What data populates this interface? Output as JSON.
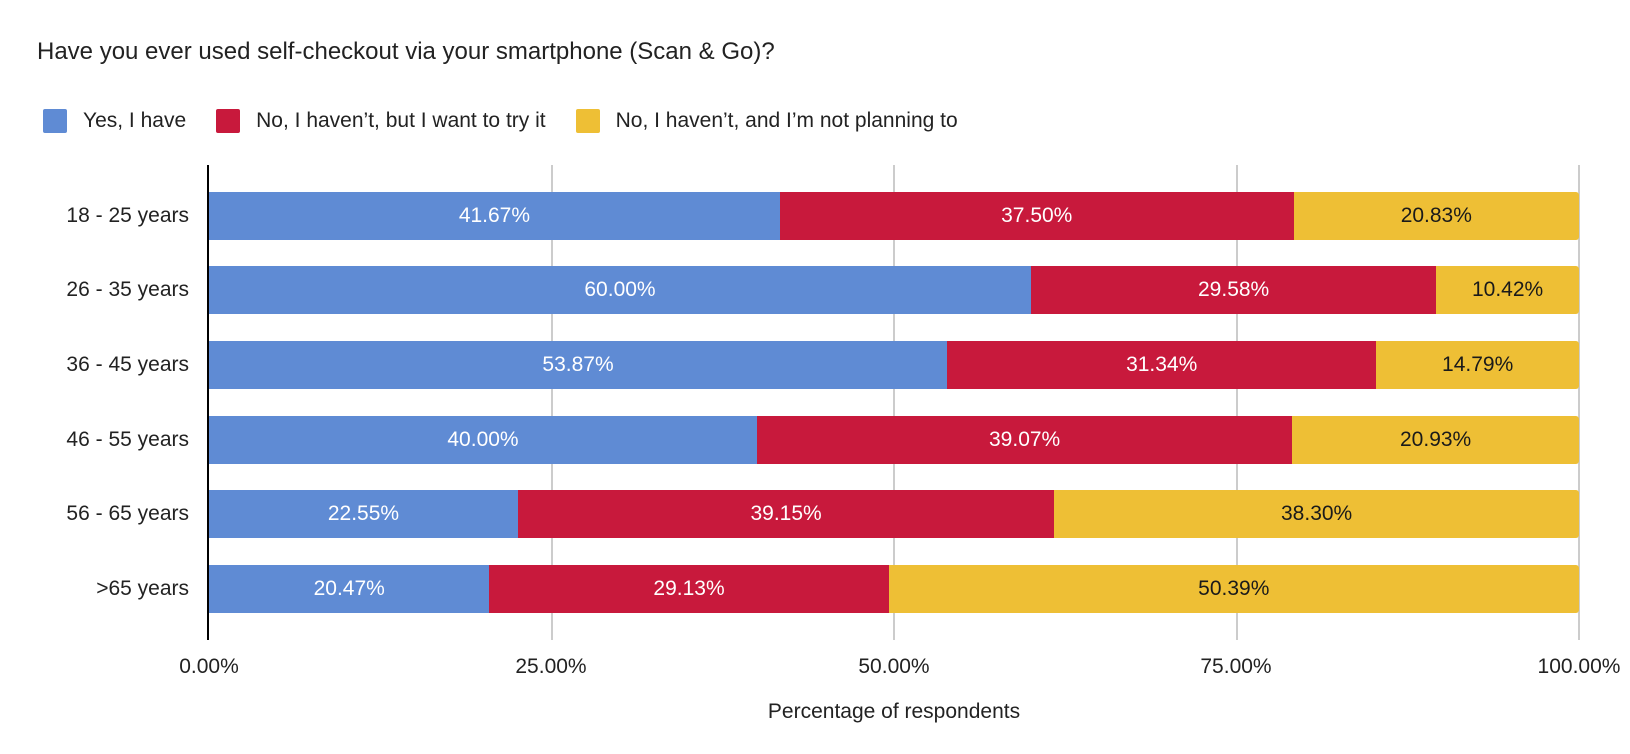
{
  "chart_data": {
    "type": "bar",
    "orientation": "horizontal",
    "stacked": "percent",
    "title": "Have you ever used self-checkout via your smartphone (Scan & Go)?",
    "xlabel": "Percentage of respondents",
    "ylabel": "",
    "xlim": [
      0,
      100
    ],
    "xticks": [
      "0.00%",
      "25.00%",
      "50.00%",
      "75.00%",
      "100.00%"
    ],
    "grid": true,
    "legend_position": "top",
    "categories": [
      "18 - 25 years",
      "26 - 35 years",
      "36 - 45 years",
      "46 - 55 years",
      "56 - 65 years",
      ">65 years"
    ],
    "series": [
      {
        "name": "Yes, I have",
        "color": "#5f8bd4",
        "values": [
          41.67,
          60.0,
          53.87,
          40.0,
          22.55,
          20.47
        ],
        "labels": [
          "41.67%",
          "60.00%",
          "53.87%",
          "40.00%",
          "22.55%",
          "20.47%"
        ]
      },
      {
        "name": "No, I haven’t, but I want to try it",
        "color": "#c8193c",
        "values": [
          37.5,
          29.58,
          31.34,
          39.07,
          39.15,
          29.13
        ],
        "labels": [
          "37.50%",
          "29.58%",
          "31.34%",
          "39.07%",
          "39.15%",
          "29.13%"
        ]
      },
      {
        "name": "No, I haven’t, and I’m not planning to",
        "color": "#eebf35",
        "values": [
          20.83,
          10.42,
          14.79,
          20.93,
          38.3,
          50.39
        ],
        "labels": [
          "20.83%",
          "10.42%",
          "14.79%",
          "20.93%",
          "38.30%",
          "50.39%"
        ]
      }
    ]
  }
}
